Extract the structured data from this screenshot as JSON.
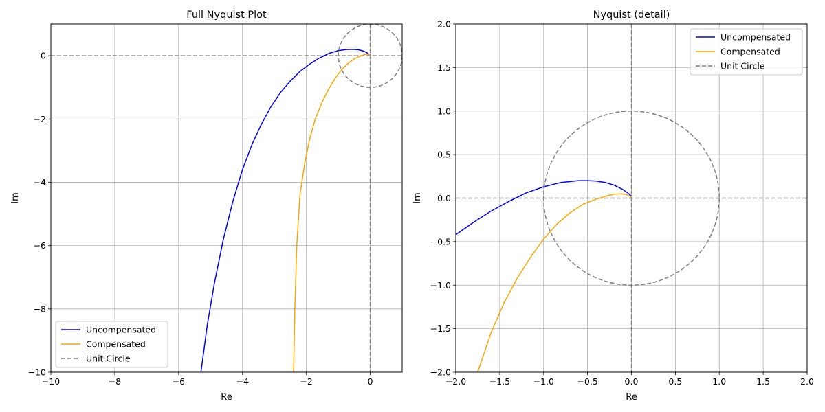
{
  "chart_data": [
    {
      "type": "line",
      "title": "Full Nyquist Plot",
      "xlabel": "Re",
      "ylabel": "Im",
      "xlim": [
        -10,
        1
      ],
      "ylim": [
        -10,
        1
      ],
      "xticks": [
        -10,
        -8,
        -6,
        -4,
        -2,
        0
      ],
      "xtick_labels": [
        "−10",
        "−8",
        "−6",
        "−4",
        "−2",
        "0"
      ],
      "yticks": [
        -10,
        -8,
        -6,
        -4,
        -2,
        0
      ],
      "ytick_labels": [
        "−10",
        "−8",
        "−6",
        "−4",
        "−2",
        "0"
      ],
      "grid": true,
      "legend_position": "lower-left",
      "series": [
        {
          "name": "Uncompensated",
          "color": "#0000ff",
          "style": "solid",
          "x": [
            -5.3,
            -5.1,
            -4.88,
            -4.6,
            -4.3,
            -4.0,
            -3.7,
            -3.4,
            -3.1,
            -2.8,
            -2.5,
            -2.2,
            -1.9,
            -1.6,
            -1.3,
            -1.0,
            -0.75,
            -0.52,
            -0.35,
            -0.2,
            -0.1,
            0.0
          ],
          "y": [
            -10.0,
            -8.5,
            -7.2,
            -5.8,
            -4.6,
            -3.6,
            -2.8,
            -2.15,
            -1.6,
            -1.15,
            -0.8,
            -0.5,
            -0.27,
            -0.08,
            0.07,
            0.16,
            0.195,
            0.2,
            0.185,
            0.14,
            0.09,
            0.02
          ]
        },
        {
          "name": "Compensated",
          "color": "#ffa500",
          "style": "solid",
          "x": [
            -2.4,
            -2.36,
            -2.3,
            -2.2,
            -2.05,
            -1.9,
            -1.72,
            -1.5,
            -1.3,
            -1.1,
            -0.9,
            -0.7,
            -0.5,
            -0.35,
            -0.2,
            -0.1,
            0.0
          ],
          "y": [
            -10.0,
            -8.0,
            -6.0,
            -4.4,
            -3.4,
            -2.65,
            -2.0,
            -1.45,
            -1.05,
            -0.72,
            -0.45,
            -0.25,
            -0.1,
            -0.03,
            0.03,
            0.05,
            0.02
          ]
        },
        {
          "name": "Unit Circle",
          "color": "#808080",
          "style": "dashed",
          "shape": "circle",
          "center": [
            0,
            0
          ],
          "radius": 1
        }
      ],
      "reference_lines": [
        {
          "axis": "y",
          "value": 0,
          "color": "#808080",
          "style": "dashed"
        },
        {
          "axis": "x",
          "value": 0,
          "color": "#808080",
          "style": "dashed"
        }
      ]
    },
    {
      "type": "line",
      "title": "Nyquist (detail)",
      "xlabel": "Re",
      "ylabel": "Im",
      "xlim": [
        -2,
        2
      ],
      "ylim": [
        -2,
        2
      ],
      "xticks": [
        -2,
        -1.5,
        -1,
        -0.5,
        0,
        0.5,
        1,
        1.5,
        2
      ],
      "xtick_labels": [
        "−2.0",
        "−1.5",
        "−1.0",
        "−0.5",
        "0.0",
        "0.5",
        "1.0",
        "1.5",
        "2.0"
      ],
      "yticks": [
        -2,
        -1.5,
        -1,
        -0.5,
        0,
        0.5,
        1,
        1.5,
        2
      ],
      "ytick_labels": [
        "−2.0",
        "−1.5",
        "−1.0",
        "−0.5",
        "0.0",
        "0.5",
        "1.0",
        "1.5",
        "2.0"
      ],
      "grid": true,
      "legend_position": "upper-right",
      "series": [
        {
          "name": "Uncompensated",
          "color": "#0000ff",
          "style": "solid",
          "x": [
            -2.0,
            -1.8,
            -1.6,
            -1.4,
            -1.2,
            -1.0,
            -0.8,
            -0.6,
            -0.5,
            -0.4,
            -0.3,
            -0.2,
            -0.1,
            -0.03,
            0.0
          ],
          "y": [
            -0.42,
            -0.28,
            -0.15,
            -0.04,
            0.06,
            0.13,
            0.18,
            0.2,
            0.2,
            0.195,
            0.18,
            0.15,
            0.1,
            0.05,
            0.02
          ]
        },
        {
          "name": "Compensated",
          "color": "#ffa500",
          "style": "solid",
          "x": [
            -1.75,
            -1.6,
            -1.45,
            -1.3,
            -1.15,
            -1.0,
            -0.85,
            -0.7,
            -0.55,
            -0.4,
            -0.3,
            -0.2,
            -0.12,
            -0.05,
            0.0
          ],
          "y": [
            -2.0,
            -1.55,
            -1.2,
            -0.92,
            -0.68,
            -0.47,
            -0.3,
            -0.17,
            -0.07,
            -0.01,
            0.02,
            0.045,
            0.05,
            0.04,
            0.01
          ]
        },
        {
          "name": "Unit Circle",
          "color": "#808080",
          "style": "dashed",
          "shape": "circle",
          "center": [
            0,
            0
          ],
          "radius": 1
        }
      ],
      "reference_lines": [
        {
          "axis": "y",
          "value": 0,
          "color": "#808080",
          "style": "dashed"
        },
        {
          "axis": "x",
          "value": 0,
          "color": "#808080",
          "style": "dashed"
        }
      ]
    }
  ]
}
